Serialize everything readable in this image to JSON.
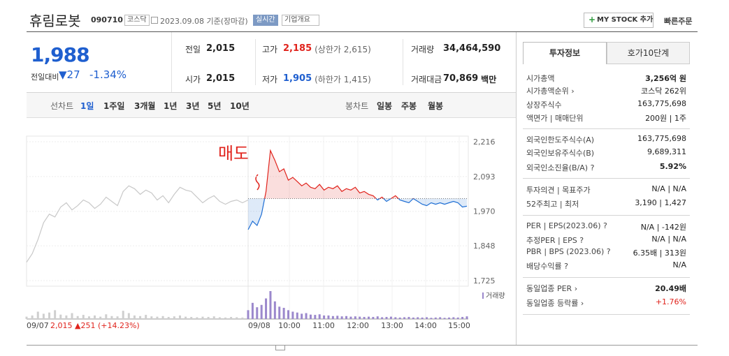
{
  "header": {
    "name": "휴림로봇",
    "code": "090710",
    "market": "코스닥",
    "date": "2023.09.08 기준(장마감)",
    "realtime": "실시간",
    "overview": "기업개요",
    "mystock": "MY STOCK 추가",
    "quick_order": "빠른주문"
  },
  "quote": {
    "price": "1,988",
    "change_label": "전일대비",
    "change": "▼27",
    "change_pct": "-1.34%"
  },
  "stats": [
    [
      {
        "label": "전일",
        "value": "2,015"
      },
      {
        "label": "고가",
        "value": "2,185",
        "note": "(상한가 2,615)"
      },
      {
        "label": "거래량",
        "value": "34,464,590"
      }
    ],
    [
      {
        "label": "시가",
        "value": "2,015"
      },
      {
        "label": "저가",
        "value": "1,905",
        "note": "(하한가 1,415)"
      },
      {
        "label": "거래대금",
        "value": "70,869",
        "note": "백만"
      }
    ]
  ],
  "line_tabs": {
    "label": "선차트",
    "items": [
      "1일",
      "1주일",
      "3개월",
      "1년",
      "3년",
      "5년",
      "10년"
    ]
  },
  "candle_tabs": {
    "label": "봉차트",
    "items": [
      "일봉",
      "주봉",
      "월봉"
    ]
  },
  "chart": {
    "annotation": "매도",
    "ylim": [
      1725,
      2216
    ],
    "yticks": [
      {
        "value": 2216,
        "label": "2,216"
      },
      {
        "value": 2093,
        "label": "2,093"
      },
      {
        "value": 1970,
        "label": "1,970"
      },
      {
        "value": 1848,
        "label": "1,848"
      },
      {
        "value": 1725,
        "label": "1,725"
      }
    ],
    "prev_close": 2015,
    "prev_values": [
      1790,
      1820,
      1870,
      1930,
      1960,
      1950,
      1985,
      2000,
      1975,
      1990,
      2010,
      2000,
      1980,
      1995,
      2020,
      2005,
      1990,
      2040,
      2060,
      2050,
      2030,
      2045,
      2035,
      2010,
      2025,
      2000,
      2030,
      2055,
      2045,
      2040,
      2020,
      2000,
      2015,
      2025,
      2005,
      1995,
      2005,
      2010,
      2000,
      2010
    ],
    "today_values": [
      1905,
      1935,
      1920,
      1960,
      2040,
      2185,
      2150,
      2110,
      2120,
      2080,
      2090,
      2075,
      2060,
      2070,
      2055,
      2050,
      2065,
      2045,
      2055,
      2050,
      2060,
      2040,
      2050,
      2045,
      2055,
      2035,
      2040,
      2030,
      2025,
      2010,
      2020,
      2005,
      2015,
      2025,
      2010,
      2005,
      2000,
      2015,
      2005,
      1995,
      1990,
      2000,
      1995,
      2000,
      1995,
      2000,
      2005,
      2000,
      1985,
      1988
    ],
    "prev_volume": [
      8,
      12,
      25,
      18,
      22,
      30,
      15,
      12,
      20,
      10,
      14,
      9,
      12,
      8,
      16,
      10,
      9,
      28,
      20,
      12,
      10,
      14,
      9,
      8,
      10,
      7,
      9,
      12,
      8,
      7,
      6,
      8,
      7,
      9,
      6,
      5,
      7,
      6,
      5,
      8
    ],
    "today_volume": [
      30,
      55,
      40,
      48,
      70,
      95,
      60,
      42,
      38,
      30,
      25,
      22,
      18,
      20,
      15,
      14,
      16,
      12,
      12,
      10,
      11,
      9,
      10,
      8,
      9,
      8,
      7,
      8,
      7,
      9,
      6,
      7,
      8,
      6,
      5,
      6,
      7,
      5,
      6,
      5,
      6,
      4,
      5,
      6,
      4,
      5,
      6,
      5,
      7,
      9
    ],
    "volume_label": "거래량",
    "prev_date": "09/07",
    "prev_summary": "2,015 ▲251 (+14.23%)",
    "today_date": "09/08",
    "times": [
      "10:00",
      "11:00",
      "12:00",
      "13:00",
      "14:00",
      "15:00"
    ]
  },
  "info": {
    "tabs": [
      "투자정보",
      "호가10단계"
    ],
    "sections": [
      [
        {
          "label": "시가총액",
          "value": "3,256억 원"
        },
        {
          "label": "시가총액순위 ›",
          "value": "코스닥 262위"
        },
        {
          "label": "상장주식수",
          "value": "163,775,698"
        },
        {
          "label": "액면가 | 매매단위",
          "value": "200원 | 1주"
        }
      ],
      [
        {
          "label": "외국인한도주식수(A)",
          "value": "163,775,698"
        },
        {
          "label": "외국인보유주식수(B)",
          "value": "9,689,311"
        },
        {
          "label": "외국인소진율(B/A) ?",
          "value": "5.92%"
        }
      ],
      [
        {
          "label": "투자의견 | 목표주가",
          "value": "N/A | N/A"
        },
        {
          "label": "52주최고 | 최저",
          "value": "3,190 | 1,427"
        }
      ],
      [
        {
          "label": "PER | EPS(2023.06) ?",
          "value": "N/A | -142원"
        },
        {
          "label": "추정PER | EPS ?",
          "value": "N/A | N/A"
        },
        {
          "label": "PBR | BPS (2023.06) ?",
          "value": "6.35배 | 313원"
        },
        {
          "label": "배당수익률 ?",
          "value": "N/A"
        }
      ],
      [
        {
          "label": "동일업종 PER ›",
          "value": "20.49배"
        },
        {
          "label": "동일업종 등락률 ›",
          "value": "+1.76%"
        }
      ]
    ]
  }
}
